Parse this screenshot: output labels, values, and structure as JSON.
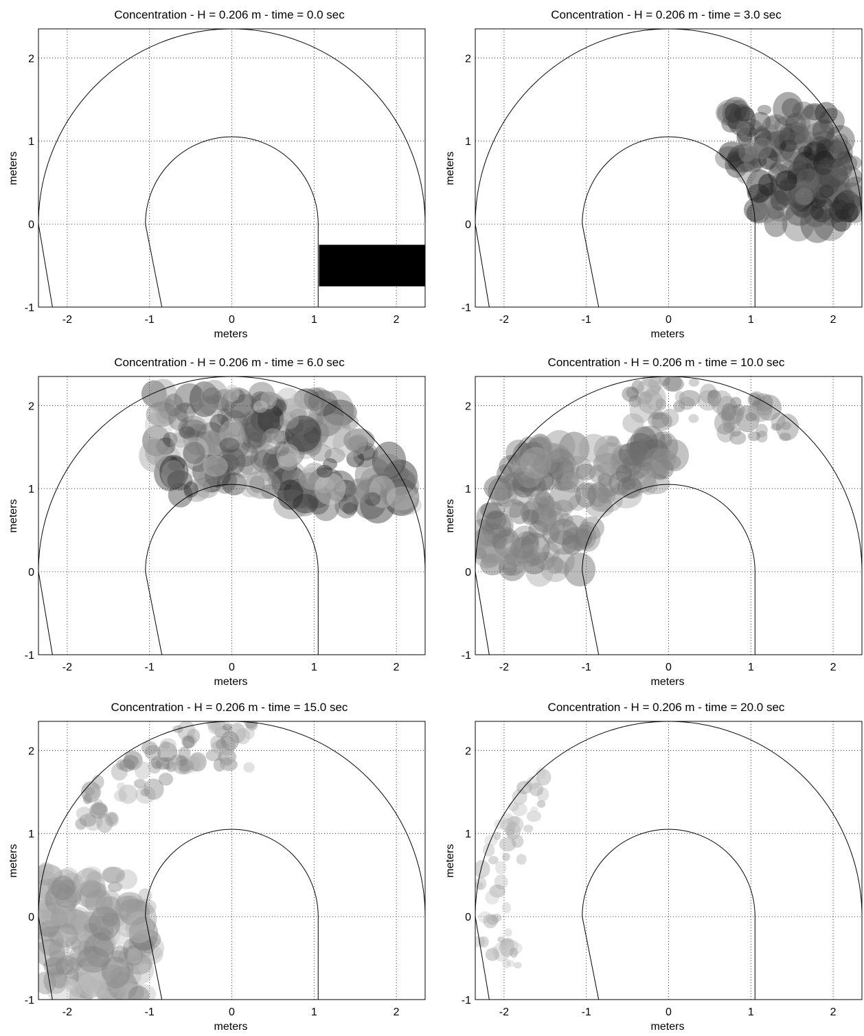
{
  "figure_title": "",
  "colors": {
    "background": "#ffffff",
    "axis": "#000000",
    "grid": "#000000",
    "plume": "#000000"
  },
  "chart_data": [
    {
      "type": "heatmap",
      "title": "Concentration  - H = 0.206 m -  time = 0.0 sec",
      "xlabel": "meters",
      "ylabel": "meters",
      "xticks": [
        "-2",
        "-1",
        "0",
        "1",
        "2"
      ],
      "yticks": [
        "-1",
        "0",
        "1",
        "2"
      ],
      "xlim": [
        -2.35,
        2.35
      ],
      "ylim": [
        -1,
        2.35
      ],
      "grid": "dotted",
      "time_s": 0.0,
      "depth_m": 0.206
    },
    {
      "type": "heatmap",
      "title": "Concentration  - H = 0.206 m -  time = 3.0 sec",
      "xlabel": "meters",
      "ylabel": "meters",
      "xticks": [
        "-2",
        "-1",
        "0",
        "1",
        "2"
      ],
      "yticks": [
        "-1",
        "0",
        "1",
        "2"
      ],
      "xlim": [
        -2.35,
        2.35
      ],
      "ylim": [
        -1,
        2.35
      ],
      "grid": "dotted",
      "time_s": 3.0,
      "depth_m": 0.206
    },
    {
      "type": "heatmap",
      "title": "Concentration  - H = 0.206 m -  time = 6.0 sec",
      "xlabel": "meters",
      "ylabel": "meters",
      "xticks": [
        "-2",
        "-1",
        "0",
        "1",
        "2"
      ],
      "yticks": [
        "-1",
        "0",
        "1",
        "2"
      ],
      "xlim": [
        -2.35,
        2.35
      ],
      "ylim": [
        -1,
        2.35
      ],
      "grid": "dotted",
      "time_s": 6.0,
      "depth_m": 0.206
    },
    {
      "type": "heatmap",
      "title": "Concentration  - H = 0.206 m -  time = 10.0 sec",
      "xlabel": "meters",
      "ylabel": "meters",
      "xticks": [
        "-2",
        "-1",
        "0",
        "1",
        "2"
      ],
      "yticks": [
        "-1",
        "0",
        "1",
        "2"
      ],
      "xlim": [
        -2.35,
        2.35
      ],
      "ylim": [
        -1,
        2.35
      ],
      "grid": "dotted",
      "time_s": 10.0,
      "depth_m": 0.206
    },
    {
      "type": "heatmap",
      "title": "Concentration  - H = 0.206 m -  time = 15.0 sec",
      "xlabel": "meters",
      "ylabel": "meters",
      "xticks": [
        "-2",
        "-1",
        "0",
        "1",
        "2"
      ],
      "yticks": [
        "-1",
        "0",
        "1",
        "2"
      ],
      "xlim": [
        -2.35,
        2.35
      ],
      "ylim": [
        -1,
        2.35
      ],
      "grid": "dotted",
      "time_s": 15.0,
      "depth_m": 0.206
    },
    {
      "type": "heatmap",
      "title": "Concentration  - H = 0.206 m -  time = 20.0 sec",
      "xlabel": "meters",
      "ylabel": "meters",
      "xticks": [
        "-2",
        "-1",
        "0",
        "1",
        "2"
      ],
      "yticks": [
        "-1",
        "0",
        "1",
        "2"
      ],
      "xlim": [
        -2.35,
        2.35
      ],
      "ylim": [
        -1,
        2.35
      ],
      "grid": "dotted",
      "time_s": 20.0,
      "depth_m": 0.206
    }
  ]
}
